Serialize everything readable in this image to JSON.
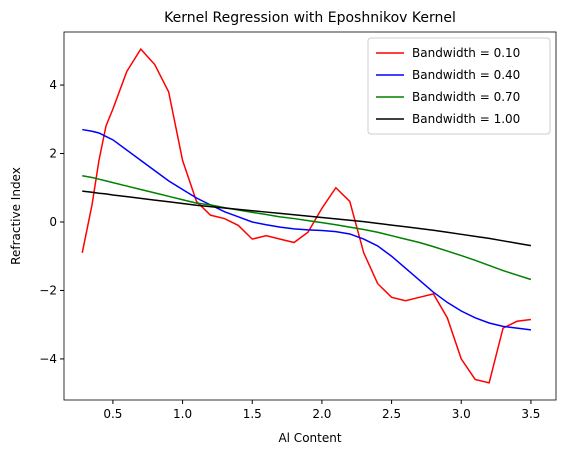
{
  "chart_data": {
    "type": "line",
    "title": "Kernel Regression with Eposhnikov Kernel",
    "xlabel": "Al Content",
    "ylabel": "Refractive Index",
    "x": [
      0.28,
      0.35,
      0.4,
      0.45,
      0.5,
      0.6,
      0.7,
      0.8,
      0.9,
      1.0,
      1.1,
      1.2,
      1.3,
      1.4,
      1.5,
      1.6,
      1.7,
      1.8,
      1.9,
      2.0,
      2.1,
      2.2,
      2.3,
      2.4,
      2.5,
      2.6,
      2.7,
      2.8,
      2.9,
      3.0,
      3.1,
      3.2,
      3.3,
      3.4,
      3.5
    ],
    "series": [
      {
        "name": "Bandwidth = 0.10",
        "color": "#ff0000",
        "values": [
          -0.9,
          0.5,
          1.8,
          2.8,
          3.3,
          4.4,
          5.05,
          4.6,
          3.8,
          1.8,
          0.6,
          0.2,
          0.1,
          -0.1,
          -0.5,
          -0.4,
          -0.5,
          -0.6,
          -0.3,
          0.4,
          1.0,
          0.6,
          -0.9,
          -1.8,
          -2.2,
          -2.3,
          -2.2,
          -2.1,
          -2.8,
          -4.0,
          -4.6,
          -4.7,
          -3.1,
          -2.9,
          -2.85
        ]
      },
      {
        "name": "Bandwidth = 0.40",
        "color": "#0000ff",
        "values": [
          2.7,
          2.65,
          2.6,
          2.5,
          2.4,
          2.1,
          1.8,
          1.5,
          1.2,
          0.95,
          0.7,
          0.5,
          0.3,
          0.15,
          0.0,
          -0.08,
          -0.15,
          -0.2,
          -0.23,
          -0.25,
          -0.28,
          -0.35,
          -0.5,
          -0.7,
          -1.0,
          -1.35,
          -1.7,
          -2.05,
          -2.35,
          -2.6,
          -2.8,
          -2.95,
          -3.05,
          -3.1,
          -3.15
        ]
      },
      {
        "name": "Bandwidth = 0.70",
        "color": "#008000",
        "values": [
          1.35,
          1.3,
          1.25,
          1.2,
          1.15,
          1.05,
          0.95,
          0.85,
          0.75,
          0.65,
          0.55,
          0.5,
          0.42,
          0.35,
          0.28,
          0.22,
          0.15,
          0.1,
          0.04,
          -0.02,
          -0.08,
          -0.15,
          -0.22,
          -0.3,
          -0.4,
          -0.5,
          -0.6,
          -0.72,
          -0.85,
          -0.98,
          -1.12,
          -1.27,
          -1.42,
          -1.55,
          -1.68
        ]
      },
      {
        "name": "Bandwidth = 1.00",
        "color": "#000000",
        "values": [
          0.9,
          0.87,
          0.84,
          0.82,
          0.79,
          0.74,
          0.69,
          0.64,
          0.59,
          0.54,
          0.49,
          0.45,
          0.41,
          0.37,
          0.33,
          0.29,
          0.25,
          0.21,
          0.17,
          0.13,
          0.09,
          0.05,
          0.01,
          -0.04,
          -0.09,
          -0.14,
          -0.19,
          -0.24,
          -0.3,
          -0.36,
          -0.42,
          -0.48,
          -0.55,
          -0.62,
          -0.69
        ]
      }
    ],
    "xlim": [
      0.149,
      3.68
    ],
    "ylim": [
      -5.2,
      5.55
    ],
    "xticks": [
      0.5,
      {
        "value": 1,
        "label": "1.0"
      },
      1.5,
      {
        "value": 2,
        "label": "2.0"
      },
      2.5,
      {
        "value": 3,
        "label": "3.0"
      },
      3.5
    ],
    "yticks": [
      {
        "value": -4,
        "label": "−4"
      },
      {
        "value": -2,
        "label": "−2"
      },
      0,
      2,
      4
    ],
    "legend": "upper right",
    "grid": false
  }
}
